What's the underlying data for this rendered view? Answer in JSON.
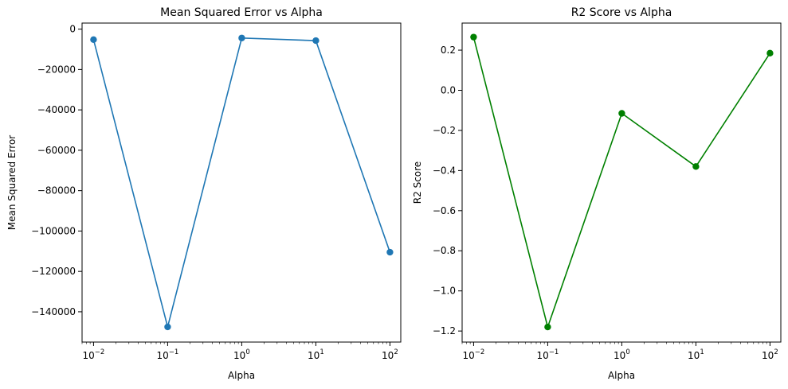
{
  "chart_data": [
    {
      "type": "line",
      "title": "Mean Squared Error vs Alpha",
      "xlabel": "Alpha",
      "ylabel": "Mean Squared Error",
      "xscale": "log",
      "xlim": [
        0.007,
        140
      ],
      "ylim": [
        -155000,
        3000
      ],
      "x_ticks": [
        0.01,
        0.1,
        1,
        10,
        100
      ],
      "x_tick_labels": [
        {
          "base": "10",
          "exp": "−2"
        },
        {
          "base": "10",
          "exp": "−1"
        },
        {
          "base": "10",
          "exp": "0"
        },
        {
          "base": "10",
          "exp": "1"
        },
        {
          "base": "10",
          "exp": "2"
        }
      ],
      "y_ticks": [
        0,
        -20000,
        -40000,
        -60000,
        -80000,
        -100000,
        -120000,
        -140000
      ],
      "y_tick_labels": [
        "0",
        "−20000",
        "−40000",
        "−60000",
        "−80000",
        "−100000",
        "−120000",
        "−140000"
      ],
      "grid": false,
      "color": "#1f77b4",
      "marker": "circle",
      "series": [
        {
          "x": [
            0.01,
            0.1,
            1,
            10,
            100
          ],
          "values": [
            -5200,
            -147500,
            -4400,
            -5700,
            -110500
          ]
        }
      ]
    },
    {
      "type": "line",
      "title": "R2 Score vs Alpha",
      "xlabel": "Alpha",
      "ylabel": "R2 Score",
      "xscale": "log",
      "xlim": [
        0.007,
        140
      ],
      "ylim": [
        -1.255,
        0.335
      ],
      "x_ticks": [
        0.01,
        0.1,
        1,
        10,
        100
      ],
      "x_tick_labels": [
        {
          "base": "10",
          "exp": "−2"
        },
        {
          "base": "10",
          "exp": "−1"
        },
        {
          "base": "10",
          "exp": "0"
        },
        {
          "base": "10",
          "exp": "1"
        },
        {
          "base": "10",
          "exp": "2"
        }
      ],
      "y_ticks": [
        0.2,
        0.0,
        -0.2,
        -0.4,
        -0.6,
        -0.8,
        -1.0,
        -1.2
      ],
      "y_tick_labels": [
        "0.2",
        "0.0",
        "−0.2",
        "−0.4",
        "−0.6",
        "−0.8",
        "−1.0",
        "−1.2"
      ],
      "grid": false,
      "color": "#008000",
      "marker": "circle",
      "series": [
        {
          "x": [
            0.01,
            0.1,
            1,
            10,
            100
          ],
          "values": [
            0.265,
            -1.18,
            -0.115,
            -0.38,
            0.185
          ]
        }
      ]
    }
  ]
}
